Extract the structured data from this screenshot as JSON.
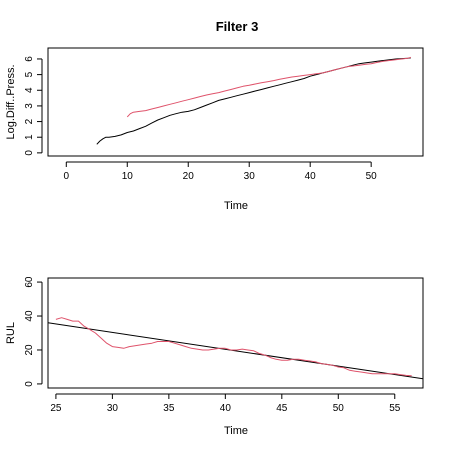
{
  "figure_title": "Filter 3",
  "colors": {
    "series_black": "#000000",
    "series_pink": "#DF536B"
  },
  "chart_data": [
    {
      "type": "line",
      "title": "Filter 3",
      "xlabel": "Time",
      "ylabel": "Log.Diff..Press.",
      "xlim": [
        -3,
        58.5
      ],
      "ylim": [
        -0.2,
        6.7
      ],
      "xticks": [
        0,
        10,
        20,
        30,
        40,
        50
      ],
      "yticks": [
        0,
        1,
        2,
        3,
        4,
        5,
        6
      ],
      "grid": false,
      "series": [
        {
          "color": "#000000",
          "x": [
            5,
            5.5,
            6,
            6.5,
            7,
            8,
            9,
            10,
            11,
            12,
            13,
            14,
            15,
            16,
            17,
            18,
            19,
            20,
            21,
            22,
            23,
            24,
            25,
            26,
            27,
            28,
            29,
            30,
            31,
            32,
            33,
            34,
            35,
            36,
            37,
            38,
            39,
            40,
            41,
            42,
            43,
            44,
            45,
            46,
            47,
            48,
            49,
            50,
            51,
            52,
            53,
            54,
            55,
            56,
            56.5
          ],
          "y": [
            0.55,
            0.75,
            0.9,
            1.0,
            1.0,
            1.05,
            1.15,
            1.3,
            1.4,
            1.55,
            1.7,
            1.9,
            2.1,
            2.25,
            2.4,
            2.5,
            2.6,
            2.65,
            2.75,
            2.9,
            3.05,
            3.2,
            3.35,
            3.45,
            3.55,
            3.65,
            3.75,
            3.85,
            3.95,
            4.05,
            4.15,
            4.25,
            4.35,
            4.45,
            4.55,
            4.65,
            4.75,
            4.9,
            5.0,
            5.1,
            5.2,
            5.3,
            5.4,
            5.5,
            5.6,
            5.7,
            5.75,
            5.8,
            5.85,
            5.9,
            5.95,
            6.0,
            6.02,
            6.05,
            6.07
          ]
        },
        {
          "color": "#DF536B",
          "x": [
            10,
            10.5,
            11,
            12,
            13,
            14,
            15,
            16,
            17,
            18,
            19,
            20,
            21,
            22,
            23,
            24,
            25,
            26,
            27,
            28,
            29,
            30,
            31,
            32,
            33,
            34,
            35,
            36,
            37,
            38,
            39,
            40,
            41,
            42,
            43,
            44,
            45,
            46,
            47,
            48,
            49,
            50,
            51,
            52,
            53,
            54,
            55,
            56,
            56.5
          ],
          "y": [
            2.3,
            2.5,
            2.6,
            2.65,
            2.7,
            2.8,
            2.9,
            3.0,
            3.1,
            3.2,
            3.3,
            3.4,
            3.5,
            3.6,
            3.7,
            3.78,
            3.85,
            3.95,
            4.05,
            4.15,
            4.25,
            4.32,
            4.4,
            4.48,
            4.55,
            4.62,
            4.7,
            4.78,
            4.85,
            4.9,
            4.95,
            5.0,
            5.05,
            5.1,
            5.2,
            5.3,
            5.4,
            5.5,
            5.55,
            5.6,
            5.65,
            5.7,
            5.78,
            5.85,
            5.9,
            5.95,
            6.0,
            6.05,
            6.1
          ]
        }
      ]
    },
    {
      "type": "line",
      "title": "",
      "xlabel": "Time",
      "ylabel": "RUL",
      "xlim": [
        24.3,
        57.5
      ],
      "ylim": [
        -2.4,
        62.4
      ],
      "xticks": [
        25,
        30,
        35,
        40,
        45,
        50,
        55
      ],
      "yticks": [
        0,
        20,
        40,
        60
      ],
      "grid": false,
      "series": [
        {
          "color": "#000000",
          "x": [
            24.3,
            57.5
          ],
          "y": [
            36,
            3
          ]
        },
        {
          "color": "#DF536B",
          "x": [
            25,
            25.5,
            26,
            26.5,
            27,
            27.5,
            28,
            28.5,
            29,
            29.5,
            30,
            30.5,
            31,
            31.5,
            32,
            32.5,
            33,
            33.5,
            34,
            34.5,
            35,
            35.5,
            36,
            36.5,
            37,
            37.5,
            38,
            38.5,
            39,
            39.5,
            40,
            40.5,
            41,
            41.5,
            42,
            42.5,
            43,
            43.5,
            44,
            44.5,
            45,
            45.5,
            46,
            46.5,
            47,
            47.5,
            48,
            48.5,
            49,
            49.5,
            50,
            50.5,
            51,
            51.5,
            52,
            52.5,
            53,
            53.5,
            54,
            54.5,
            55,
            55.5,
            56,
            56.5
          ],
          "y": [
            38,
            39,
            38,
            37,
            37,
            34,
            32,
            30,
            27,
            24,
            22,
            21.5,
            21,
            22,
            22.5,
            23,
            23.5,
            24,
            25,
            25,
            25,
            24,
            23,
            22,
            21,
            20.5,
            20,
            20,
            20.5,
            21,
            21,
            20,
            20,
            20.5,
            20,
            19.5,
            18,
            17,
            15.5,
            14.5,
            14,
            14,
            14.5,
            14.5,
            14,
            13.5,
            13,
            12,
            11.5,
            11,
            10,
            9.5,
            8,
            7.5,
            7,
            6.5,
            6,
            6,
            6,
            6,
            6,
            5.5,
            5,
            4.8
          ]
        }
      ]
    }
  ]
}
